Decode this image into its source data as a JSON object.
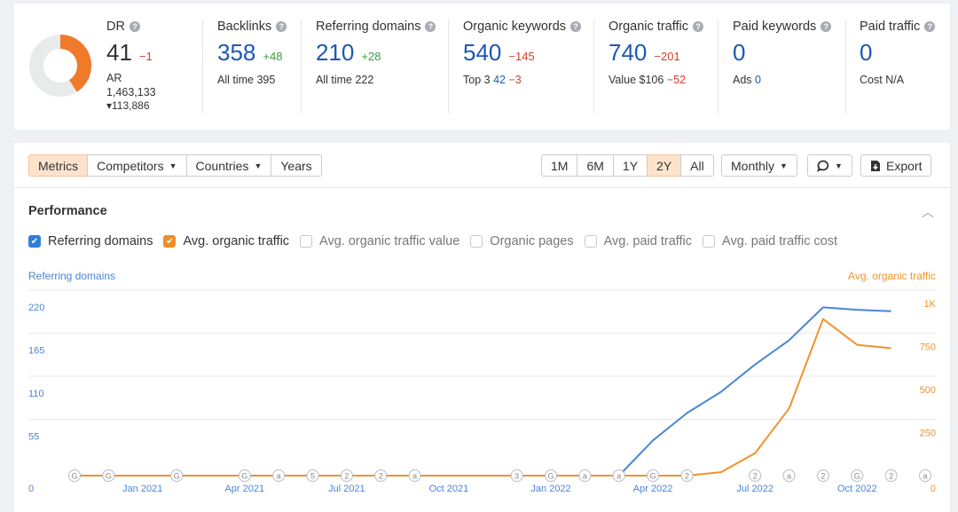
{
  "stats": {
    "dr": {
      "label": "DR",
      "value": "41",
      "delta": "−1",
      "ar_label": "AR",
      "ar_value": "1,463,133",
      "ar_delta": "▾113,886",
      "donut_fraction": 0.41
    },
    "backlinks": {
      "label": "Backlinks",
      "value": "358",
      "delta": "+48",
      "sub_label": "All time",
      "sub_value": "395"
    },
    "referring_domains": {
      "label": "Referring domains",
      "value": "210",
      "delta": "+28",
      "sub_label": "All time",
      "sub_value": "222"
    },
    "organic_keywords": {
      "label": "Organic keywords",
      "value": "540",
      "delta": "−145",
      "sub_label": "Top 3",
      "sub_value": "42",
      "sub_delta": "−3"
    },
    "organic_traffic": {
      "label": "Organic traffic",
      "value": "740",
      "delta": "−201",
      "sub_label": "Value",
      "sub_value": "$106",
      "sub_delta": "−52"
    },
    "paid_keywords": {
      "label": "Paid keywords",
      "value": "0",
      "sub_label": "Ads",
      "sub_value": "0"
    },
    "paid_traffic": {
      "label": "Paid traffic",
      "value": "0",
      "sub_label": "Cost",
      "sub_value": "N/A"
    }
  },
  "toolbar": {
    "tabs": [
      "Metrics",
      "Competitors",
      "Countries",
      "Years"
    ],
    "ranges": [
      "1M",
      "6M",
      "1Y",
      "2Y",
      "All"
    ],
    "active_range": "2Y",
    "interval": "Monthly",
    "export": "Export"
  },
  "performance": {
    "title": "Performance",
    "checkboxes": [
      {
        "label": "Referring domains",
        "checked": true,
        "color": "#2f7ed8"
      },
      {
        "label": "Avg. organic traffic",
        "checked": true,
        "color": "#f08d2b"
      },
      {
        "label": "Avg. organic traffic value",
        "checked": false
      },
      {
        "label": "Organic pages",
        "checked": false
      },
      {
        "label": "Avg. paid traffic",
        "checked": false
      },
      {
        "label": "Avg. paid traffic cost",
        "checked": false
      }
    ]
  },
  "chart_data": {
    "type": "line",
    "left_axis_label": "Referring domains",
    "right_axis_label": "Avg. organic traffic",
    "left_ticks": [
      "220",
      "165",
      "110",
      "55",
      "0"
    ],
    "left_tick_values": [
      220,
      165,
      110,
      55,
      0
    ],
    "right_ticks": [
      "1K",
      "750",
      "500",
      "250",
      "0"
    ],
    "right_tick_values": [
      1000,
      750,
      500,
      250,
      0
    ],
    "x_tick_labels": [
      "Jan 2021",
      "Apr 2021",
      "Jul 2021",
      "Oct 2021",
      "Jan 2022",
      "Apr 2022",
      "Jul 2022",
      "Oct 2022"
    ],
    "x_tick_months": [
      2,
      5,
      8,
      11,
      14,
      17,
      20,
      23
    ],
    "colors": {
      "referring_domains": "#4a86d8",
      "organic_traffic": "#f0922e"
    },
    "series": [
      {
        "name": "Referring domains",
        "axis": "left",
        "x": [
          0,
          1,
          2,
          3,
          4,
          5,
          6,
          7,
          8,
          9,
          10,
          11,
          12,
          13,
          14,
          15,
          16,
          17,
          18,
          19,
          20,
          21,
          22,
          23,
          24
        ],
        "values": [
          0,
          0,
          0,
          0,
          0,
          0,
          0,
          0,
          0,
          0,
          0,
          0,
          0,
          0,
          0,
          0,
          0,
          45,
          80,
          107,
          142,
          173,
          215,
          212,
          210
        ]
      },
      {
        "name": "Avg. organic traffic",
        "axis": "right",
        "x": [
          0,
          1,
          2,
          3,
          4,
          5,
          6,
          7,
          8,
          9,
          10,
          11,
          12,
          13,
          14,
          15,
          16,
          17,
          18,
          19,
          20,
          21,
          22,
          23,
          24
        ],
        "values": [
          0,
          0,
          0,
          0,
          0,
          0,
          0,
          0,
          0,
          0,
          0,
          0,
          0,
          0,
          0,
          0,
          0,
          0,
          0,
          20,
          130,
          390,
          910,
          760,
          740
        ]
      }
    ],
    "annotations": [
      {
        "month": 0,
        "mark": "G"
      },
      {
        "month": 1,
        "mark": "G"
      },
      {
        "month": 3,
        "mark": "G"
      },
      {
        "month": 5,
        "mark": "G"
      },
      {
        "month": 6,
        "mark": "a"
      },
      {
        "month": 7,
        "mark": "5"
      },
      {
        "month": 8,
        "mark": "2"
      },
      {
        "month": 9,
        "mark": "2"
      },
      {
        "month": 10,
        "mark": "a"
      },
      {
        "month": 13,
        "mark": "3"
      },
      {
        "month": 14,
        "mark": "G"
      },
      {
        "month": 15,
        "mark": "a"
      },
      {
        "month": 16,
        "mark": "a"
      },
      {
        "month": 17,
        "mark": "G"
      },
      {
        "month": 18,
        "mark": "2"
      },
      {
        "month": 20,
        "mark": "2"
      },
      {
        "month": 21,
        "mark": "a"
      },
      {
        "month": 22,
        "mark": "2"
      },
      {
        "month": 23,
        "mark": "G"
      },
      {
        "month": 24,
        "mark": "2"
      },
      {
        "month": 25,
        "mark": "a"
      }
    ]
  }
}
